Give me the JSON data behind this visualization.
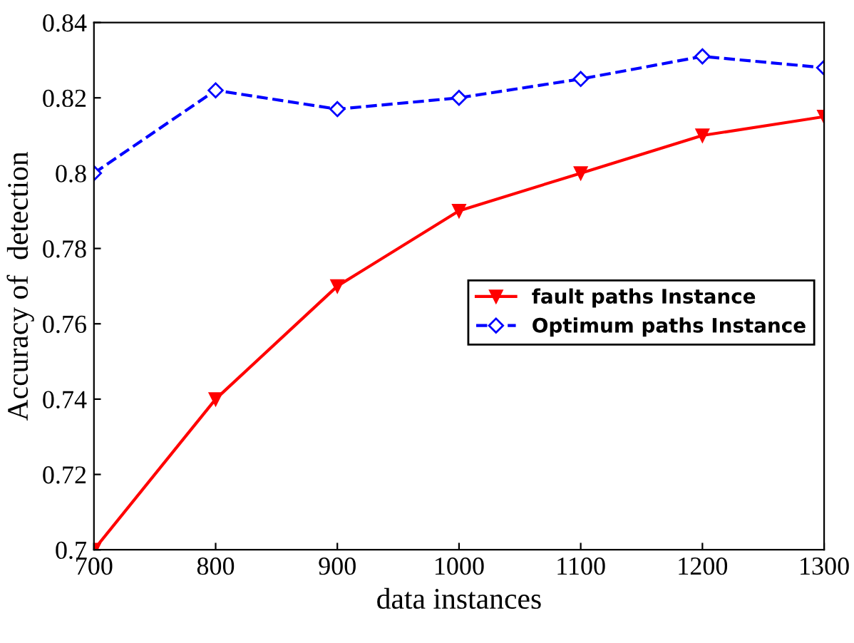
{
  "chart_data": {
    "type": "line",
    "xlabel": "data instances",
    "ylabel": "Accuracy of  detection",
    "x": [
      700,
      800,
      900,
      1000,
      1100,
      1200,
      1300
    ],
    "series": [
      {
        "name": "fault paths Instance",
        "color": "#ff0000",
        "marker": "triangle",
        "line_style": "solid",
        "values": [
          0.7,
          0.74,
          0.77,
          0.79,
          0.8,
          0.81,
          0.815
        ]
      },
      {
        "name": "Optimum paths Instance",
        "color": "#0000ff",
        "marker": "diamond",
        "line_style": "dashed",
        "values": [
          0.8,
          0.822,
          0.817,
          0.82,
          0.825,
          0.831,
          0.828
        ]
      }
    ],
    "xlim": [
      700,
      1300
    ],
    "xticks": [
      700,
      800,
      900,
      1000,
      1100,
      1200,
      1300
    ],
    "ylim": [
      0.7,
      0.84
    ],
    "yticks": [
      0.7,
      0.72,
      0.74,
      0.76,
      0.78,
      0.8,
      0.82,
      0.84
    ],
    "grid": false,
    "legend": "right"
  }
}
